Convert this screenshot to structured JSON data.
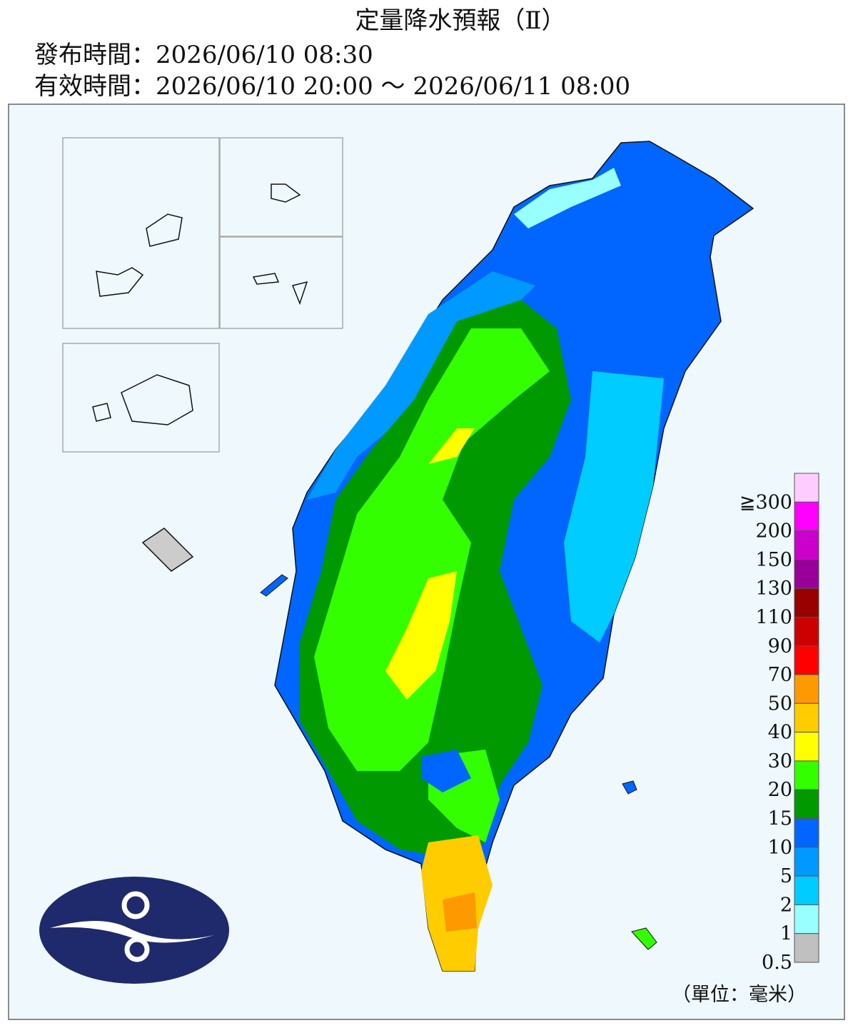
{
  "header": {
    "title": "定量降水預報（Ⅱ）",
    "issued": "發布時間：2026/06/10 08:30",
    "valid": "有效時間：2026/06/10 20:00 ～ 2026/06/11 08:00"
  },
  "legend": {
    "labels": [
      "≧300",
      "200",
      "150",
      "130",
      "110",
      "90",
      "70",
      "50",
      "40",
      "30",
      "20",
      "15",
      "10",
      "5",
      "2",
      "1",
      "0.5"
    ],
    "colors": [
      "#ffccff",
      "#ff00ff",
      "#cc00cc",
      "#990099",
      "#990000",
      "#cc0000",
      "#ff0000",
      "#ff9900",
      "#ffcc00",
      "#ffff00",
      "#33ff00",
      "#009900",
      "#0066ff",
      "#0099ff",
      "#00ccff",
      "#99ffff",
      "#c0c0c0"
    ]
  },
  "unit": "（單位：毫米）"
}
